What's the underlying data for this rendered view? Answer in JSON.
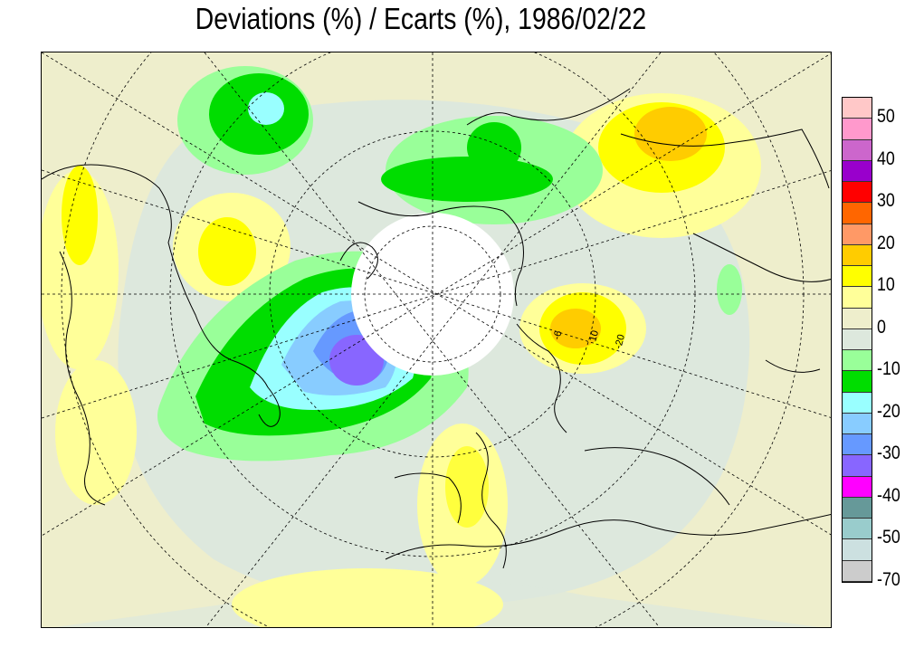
{
  "title": "Deviations (%) / Ecarts (%), 1986/02/22",
  "legend": {
    "colors": [
      "#ffc8c8",
      "#ff99cc",
      "#cc66cc",
      "#9900cc",
      "#ff0000",
      "#ff6600",
      "#ff9966",
      "#ffcc00",
      "#ffff00",
      "#ffff99",
      "#eeeecc",
      "#dde8dd",
      "#99ff99",
      "#00dd00",
      "#99ffff",
      "#88ccff",
      "#6699ff",
      "#8866ff",
      "#ff00ff",
      "#669999",
      "#99cccc",
      "#cce0e0",
      "#cccccc"
    ],
    "labels": [
      "50",
      "40",
      "30",
      "20",
      "10",
      "0",
      "-10",
      "-20",
      "-30",
      "-40",
      "-50",
      "-70"
    ]
  },
  "map_labels": [
    "-6",
    "10",
    "-20"
  ]
}
